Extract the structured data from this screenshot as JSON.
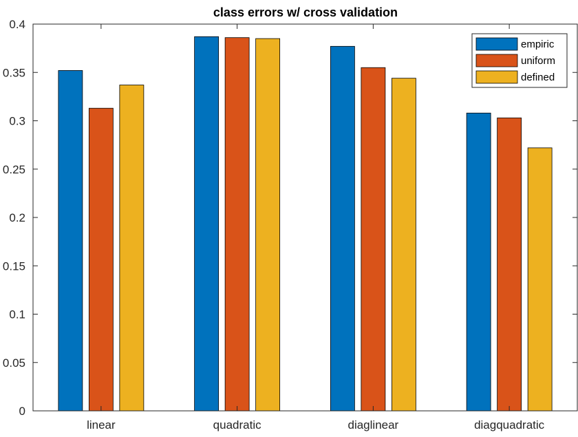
{
  "chart_data": {
    "type": "bar",
    "title": "class errors w/ cross validation",
    "xlabel": "",
    "ylabel": "",
    "categories": [
      "linear",
      "quadratic",
      "diaglinear",
      "diagquadratic"
    ],
    "series": [
      {
        "name": "empiric",
        "color": "#0072BD",
        "values": [
          0.352,
          0.387,
          0.377,
          0.308
        ]
      },
      {
        "name": "uniform",
        "color": "#D95319",
        "values": [
          0.313,
          0.386,
          0.355,
          0.303
        ]
      },
      {
        "name": "defined",
        "color": "#EDB120",
        "values": [
          0.337,
          0.385,
          0.344,
          0.272
        ]
      }
    ],
    "ylim": [
      0,
      0.4
    ],
    "yticks": [
      0,
      0.05,
      0.1,
      0.15,
      0.2,
      0.25,
      0.3,
      0.35,
      0.4
    ],
    "ytick_labels": [
      "0",
      "0.05",
      "0.1",
      "0.15",
      "0.2",
      "0.25",
      "0.3",
      "0.35",
      "0.4"
    ],
    "grid": false,
    "legend_position": "top-right"
  }
}
